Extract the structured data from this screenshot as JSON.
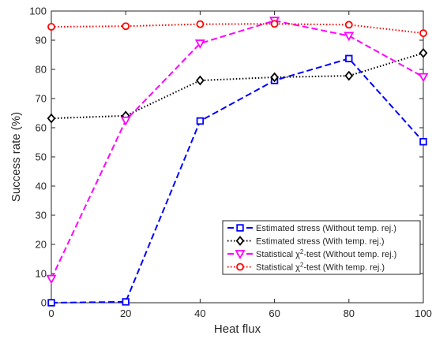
{
  "chart_data": {
    "type": "line",
    "xlabel": "Heat flux",
    "ylabel": "Success rate (%)",
    "xlim": [
      0,
      100
    ],
    "ylim": [
      0,
      100
    ],
    "x_ticks": [
      0,
      20,
      40,
      60,
      80,
      100
    ],
    "y_ticks": [
      0,
      10,
      20,
      30,
      40,
      50,
      60,
      70,
      80,
      90,
      100
    ],
    "x": [
      0,
      20,
      40,
      60,
      80,
      100
    ],
    "grid": false,
    "legend_position": "bottom-right",
    "series": [
      {
        "name": "Estimated stress (Without temp. rej.)",
        "legend_parts": [
          "Estimated stress (Without temp. rej.)"
        ],
        "values": [
          0,
          0.3,
          62.3,
          76.2,
          83.7,
          55.2
        ],
        "color": "#0000ff",
        "line_style": "dashed",
        "marker": "square"
      },
      {
        "name": "Estimated stress (With temp. rej.)",
        "legend_parts": [
          "Estimated stress (With temp. rej.)"
        ],
        "values": [
          63.2,
          64.1,
          76.2,
          77.3,
          77.8,
          85.6
        ],
        "color": "#000000",
        "line_style": "dotted",
        "marker": "diamond"
      },
      {
        "name": "Statistical χ2-test (Without temp. rej.)",
        "legend_parts": [
          "Statistical χ",
          "2",
          "-test (Without temp. rej.)"
        ],
        "values": [
          8.2,
          62.5,
          88.9,
          96.7,
          91.5,
          77.4
        ],
        "color": "#ff00ff",
        "line_style": "dashed",
        "marker": "triangle-down"
      },
      {
        "name": "Statistical χ2-test (With temp. rej.)",
        "legend_parts": [
          "Statistical χ",
          "2",
          "-test (With temp. rej.)"
        ],
        "values": [
          94.6,
          94.8,
          95.5,
          95.6,
          95.3,
          92.4
        ],
        "color": "#ff0000",
        "line_style": "dotted",
        "marker": "circle"
      }
    ]
  }
}
